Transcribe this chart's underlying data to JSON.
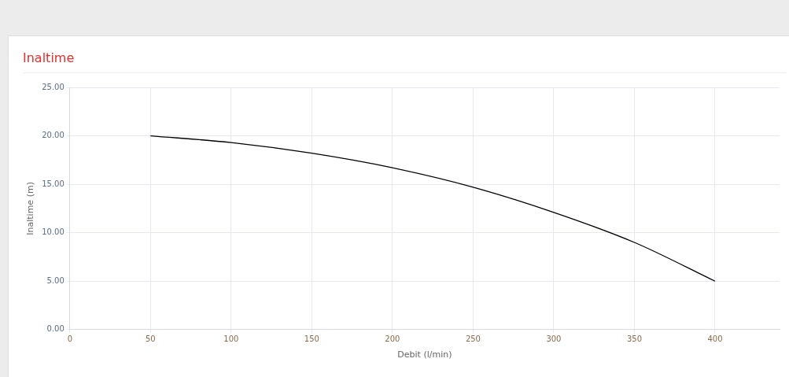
{
  "chart_data": {
    "type": "line",
    "title": "Inaltime",
    "xlabel": "Debit (l/min)",
    "ylabel": "Inaltime (m)",
    "x": [
      50,
      100,
      150,
      200,
      250,
      300,
      350,
      400
    ],
    "series": [
      {
        "color": "#000000",
        "values": [
          20.0,
          19.3,
          18.2,
          16.7,
          14.7,
          12.1,
          9.0,
          5.0
        ]
      }
    ],
    "xlim": [
      0,
      440
    ],
    "xticks": [
      0,
      50,
      100,
      150,
      200,
      250,
      300,
      350,
      400
    ],
    "ylim": [
      0,
      25
    ],
    "yticks": [
      {
        "value": 0,
        "label": "0.00"
      },
      {
        "value": 5,
        "label": "5.00"
      },
      {
        "value": 10,
        "label": "10.00"
      },
      {
        "value": 15,
        "label": "15.00"
      },
      {
        "value": 20,
        "label": "20.00"
      },
      {
        "value": 25,
        "label": "25.00"
      }
    ],
    "grid": true,
    "legend": false,
    "marker": "none",
    "line_style": "solid"
  }
}
